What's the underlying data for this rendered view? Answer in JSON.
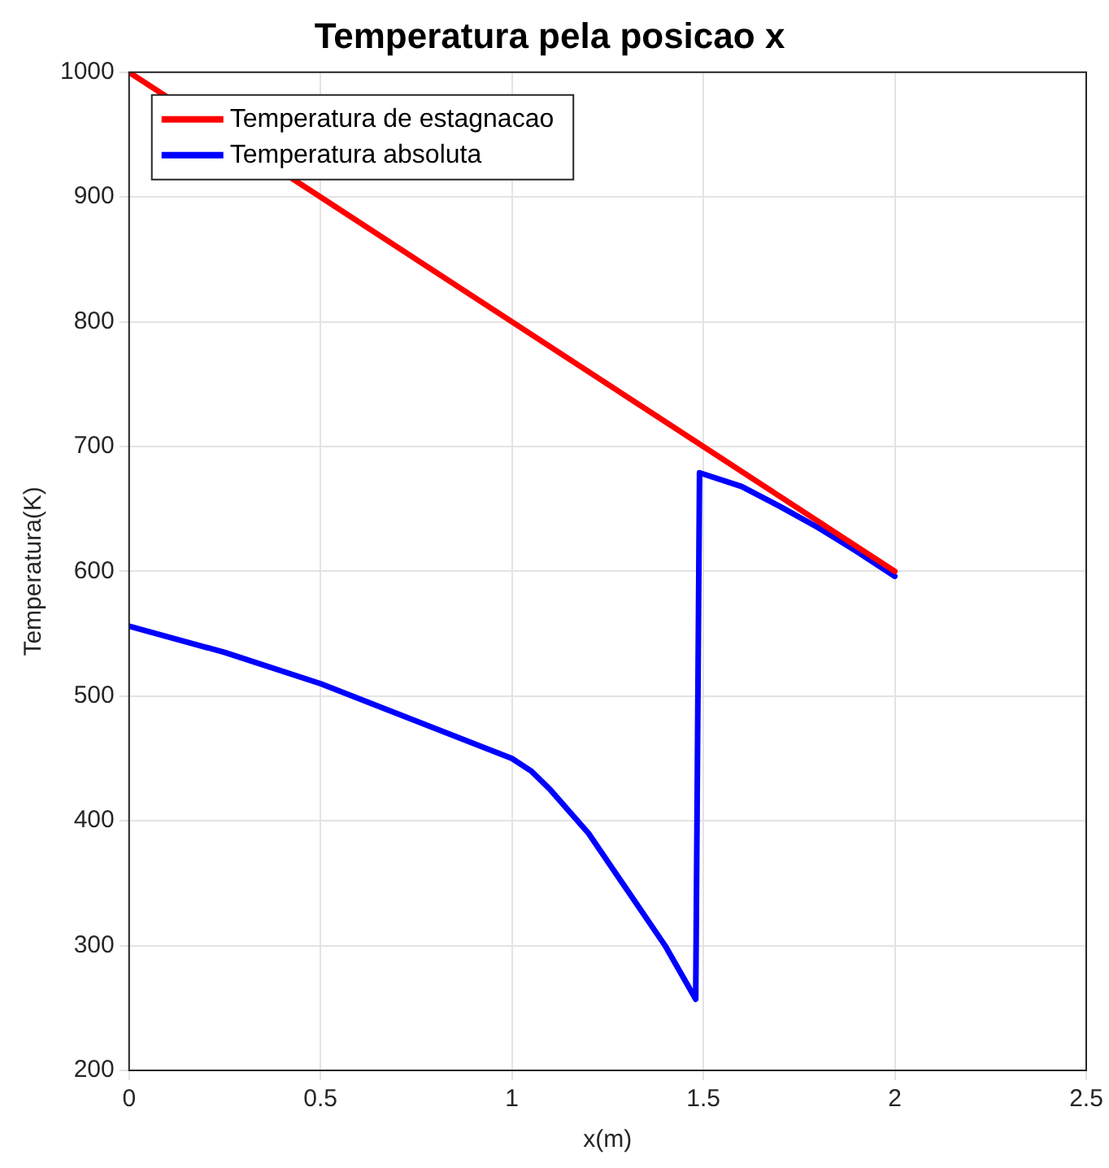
{
  "chart_data": {
    "type": "line",
    "title": "Temperatura pela posicao x",
    "xlabel": "x(m)",
    "ylabel": "Temperatura(K)",
    "xlim": [
      0,
      2.5
    ],
    "xticks": [
      0,
      0.5,
      1,
      1.5,
      2,
      2.5
    ],
    "ylim": [
      200,
      1000
    ],
    "yticks": [
      200,
      300,
      400,
      500,
      600,
      700,
      800,
      900,
      1000
    ],
    "grid": true,
    "legend": "top left",
    "marker": "none",
    "line_style": "solid",
    "series": [
      {
        "name": "Temperatura de estagnacao",
        "color": "#ff0000",
        "x": [
          0,
          2
        ],
        "values": [
          1000,
          600
        ]
      },
      {
        "name": "Temperatura absoluta",
        "color": "#0000ff",
        "x": [
          0,
          0.25,
          0.5,
          0.75,
          1,
          1.05,
          1.1,
          1.2,
          1.3,
          1.4,
          1.48,
          1.49,
          1.6,
          1.7,
          1.8,
          1.9,
          2
        ],
        "values": [
          556,
          535,
          510,
          480,
          450,
          440,
          425,
          390,
          345,
          300,
          257,
          679,
          668,
          652,
          635,
          616,
          596
        ]
      }
    ]
  }
}
